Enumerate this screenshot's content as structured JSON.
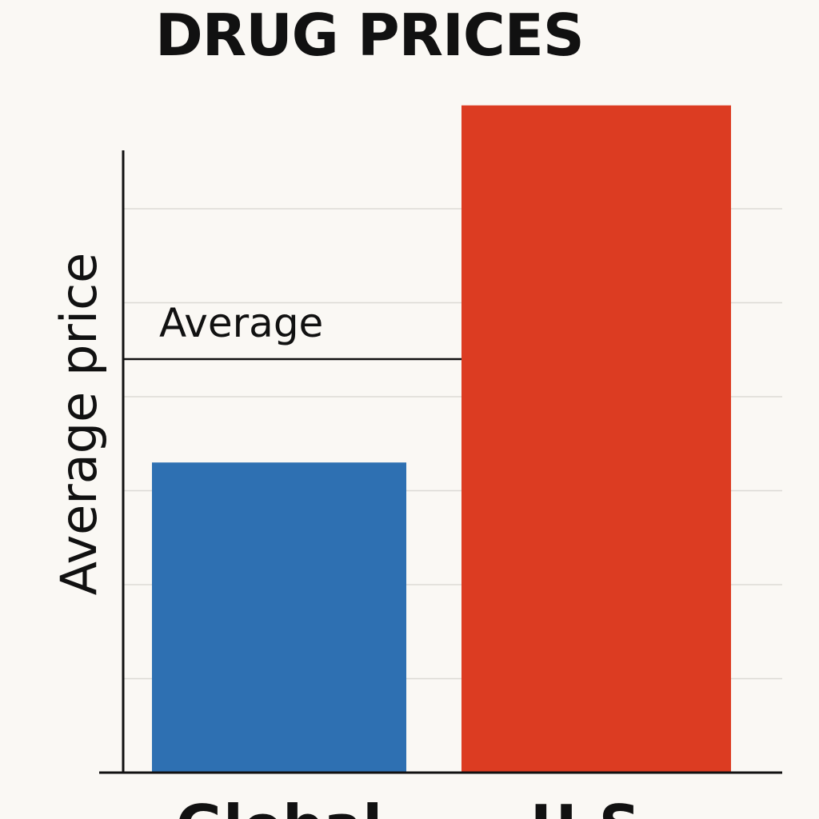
{
  "chart_data": {
    "type": "bar",
    "title": "DRUG PRICES",
    "xlabel": "",
    "ylabel": "Average price",
    "categories": [
      "Global",
      "U.S."
    ],
    "values": [
      3.3,
      7.1
    ],
    "bar_colors": [
      "#2e70b2",
      "#dc3c22"
    ],
    "ylim": [
      0,
      7.5
    ],
    "yticks": [
      1,
      2,
      3,
      4,
      5,
      6
    ],
    "grid": true,
    "reference_line": {
      "label": "Average",
      "value": 4.4,
      "color": "#111111"
    }
  }
}
